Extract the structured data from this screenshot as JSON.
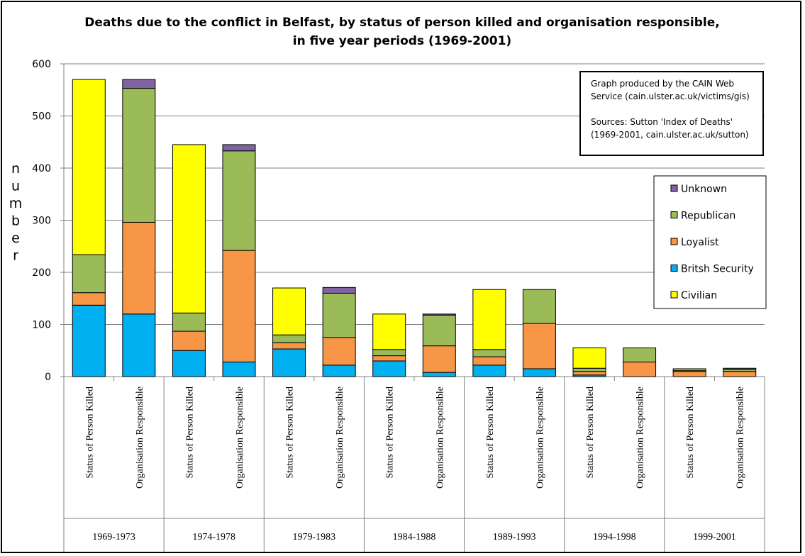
{
  "chart_data": {
    "type": "bar",
    "stacked": true,
    "title_lines": [
      "Deaths due to the conflict in Belfast, by status of person killed and organisation responsible,",
      "in five year periods (1969-2001)"
    ],
    "ylabel": "number",
    "ylim": [
      0,
      600
    ],
    "yticks": [
      0,
      100,
      200,
      300,
      400,
      500,
      600
    ],
    "grid": true,
    "legend_position": "right",
    "periods": [
      "1969-1973",
      "1974-1978",
      "1979-1983",
      "1984-1988",
      "1989-1993",
      "1994-1998",
      "1999-2001"
    ],
    "categories": [
      "Status of Person Killed",
      "Organisation Responsible",
      "Status of Person Killed",
      "Organisation Responsible",
      "Status of Person Killed",
      "Organisation Responsible",
      "Status of Person Killed",
      "Organisation Responsible",
      "Status of Person Killed",
      "Organisation Responsible",
      "Status of Person Killed",
      "Organisation Responsible",
      "Status of Person Killed",
      "Organisation Responsible"
    ],
    "series": [
      {
        "name": "Britsh Security",
        "color": "#00b0f0",
        "values": [
          137,
          120,
          50,
          28,
          53,
          22,
          30,
          8,
          22,
          15,
          3,
          0,
          0,
          0
        ]
      },
      {
        "name": "Loyalist",
        "color": "#f79646",
        "values": [
          24,
          176,
          37,
          214,
          12,
          53,
          10,
          51,
          16,
          87,
          7,
          28,
          10,
          10
        ]
      },
      {
        "name": "Republican",
        "color": "#9bbb59",
        "values": [
          73,
          257,
          35,
          191,
          15,
          85,
          12,
          59,
          14,
          65,
          6,
          27,
          2,
          4
        ]
      },
      {
        "name": "Civilian",
        "color": "#ffff00",
        "values": [
          336,
          0,
          323,
          0,
          90,
          0,
          68,
          0,
          115,
          0,
          39,
          0,
          3,
          0
        ]
      },
      {
        "name": "Unknown",
        "color": "#8064a2",
        "values": [
          0,
          17,
          0,
          12,
          0,
          11,
          0,
          2,
          0,
          0,
          0,
          0,
          0,
          2
        ]
      }
    ],
    "legend_order": [
      "Unknown",
      "Republican",
      "Loyalist",
      "Britsh Security",
      "Civilian"
    ]
  },
  "note": {
    "lines": [
      "Graph produced by the CAIN Web",
      "Service (cain.ulster.ac.uk/victims/gis)",
      "",
      "Sources: Sutton 'Index of Deaths'",
      "(1969-2001,  cain.ulster.ac.uk/sutton)"
    ]
  }
}
